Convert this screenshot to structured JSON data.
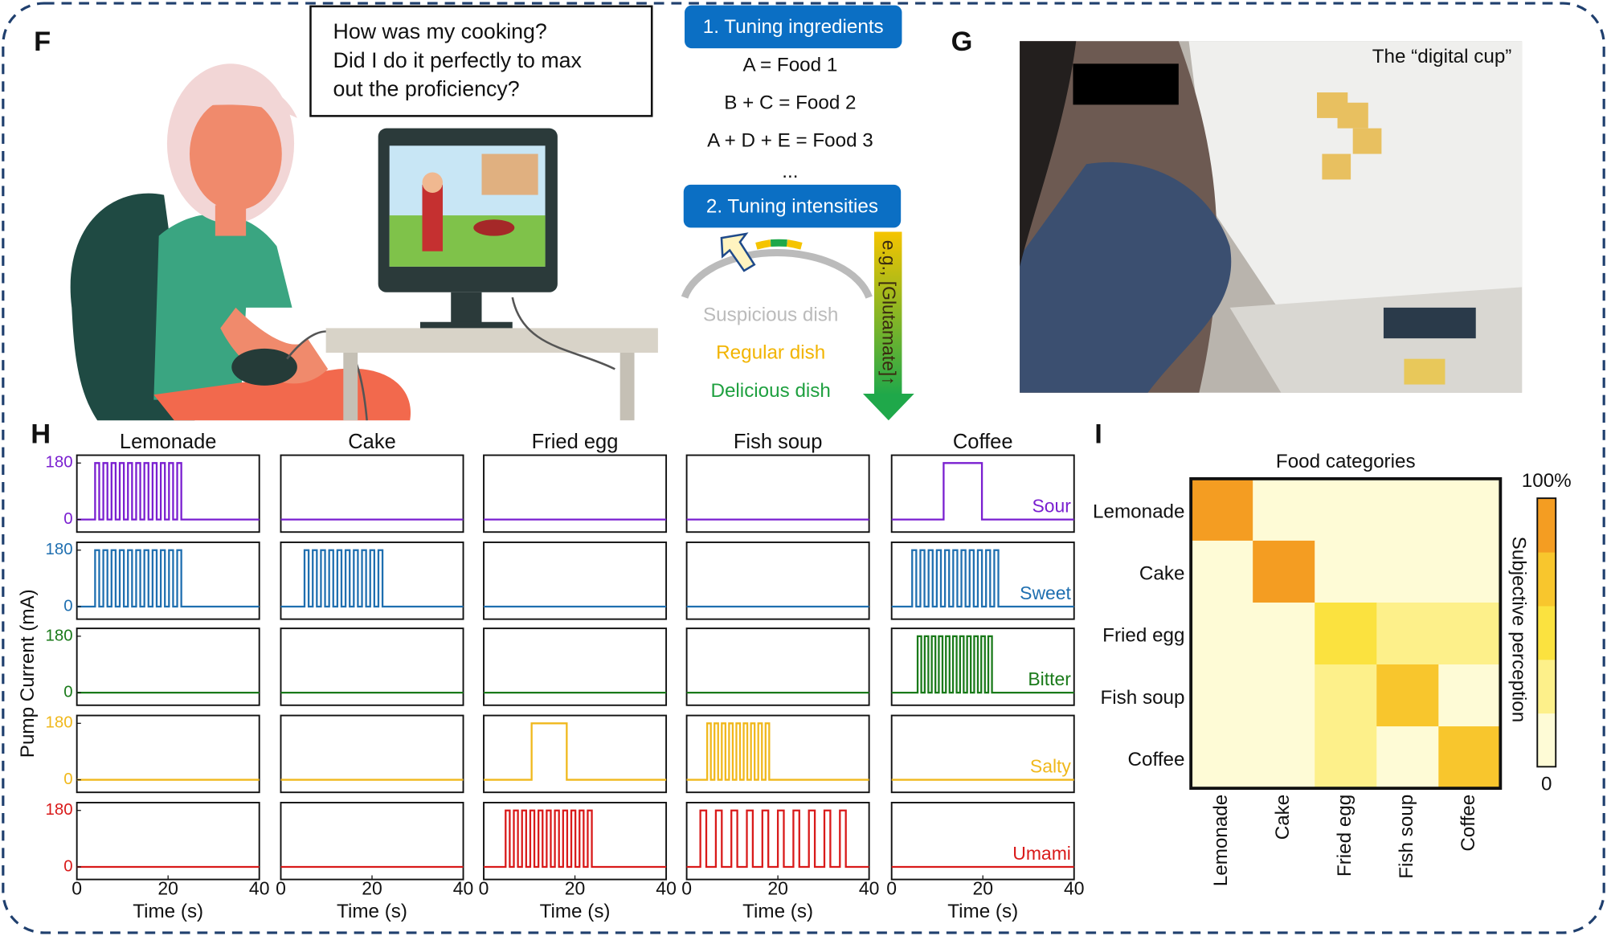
{
  "panels": {
    "F": {
      "label": "F",
      "speech": [
        "How was my cooking?",
        "Did I do it perfectly to max",
        "out the proficiency?"
      ],
      "step1": "1. Tuning ingredients",
      "recipes": [
        "A = Food 1",
        "B + C = Food 2",
        "A + D + E = Food 3",
        "..."
      ],
      "step2": "2. Tuning intensities",
      "dishes": [
        "Suspicious dish",
        "Regular dish",
        "Delicious dish"
      ],
      "arrow_label": "e.g., [Glutamate]↑"
    },
    "G": {
      "label": "G",
      "caption": "The “digital cup”"
    },
    "H": {
      "label": "H"
    },
    "I": {
      "label": "I"
    }
  },
  "chart_data": [
    {
      "type": "pulse",
      "ylabel": "Pump Current (mA)",
      "xlabel": "Time (s)",
      "columns": [
        "Lemonade",
        "Cake",
        "Fried egg",
        "Fish soup",
        "Coffee"
      ],
      "rows": [
        {
          "name": "Sour",
          "color": "#7a1fd0"
        },
        {
          "name": "Sweet",
          "color": "#1f6fb0"
        },
        {
          "name": "Bitter",
          "color": "#1a7a1a"
        },
        {
          "name": "Salty",
          "color": "#f0b81c"
        },
        {
          "name": "Umami",
          "color": "#d91a1a"
        }
      ],
      "xlim": [
        0,
        40
      ],
      "xticks": [
        0,
        20,
        40
      ],
      "ylim": [
        -40,
        205
      ],
      "yticks": [
        0,
        180
      ],
      "trains": [
        [
          [
            {
              "start": 4,
              "period": 1.8,
              "width": 0.9,
              "count": 11,
              "amplitude": 180
            }
          ],
          [],
          [],
          [],
          [
            {
              "start": 11.4,
              "period": 8.4,
              "width": 8.4,
              "count": 1,
              "amplitude": 180
            }
          ]
        ],
        [
          [
            {
              "start": 4,
              "period": 1.8,
              "width": 0.9,
              "count": 11,
              "amplitude": 180
            }
          ],
          [
            {
              "start": 5.2,
              "period": 1.8,
              "width": 0.9,
              "count": 10,
              "amplitude": 180
            }
          ],
          [],
          [],
          [
            {
              "start": 4.5,
              "period": 1.8,
              "width": 0.9,
              "count": 11,
              "amplitude": 180
            }
          ]
        ],
        [
          [],
          [],
          [],
          [],
          [
            {
              "start": 5.7,
              "period": 1.55,
              "width": 0.8,
              "count": 11,
              "amplitude": 180
            }
          ]
        ],
        [
          [],
          [],
          [
            {
              "start": 10.5,
              "period": 7.7,
              "width": 7.7,
              "count": 1,
              "amplitude": 180
            }
          ],
          [
            {
              "start": 4.5,
              "period": 1.6,
              "width": 0.8,
              "count": 9,
              "amplitude": 180
            }
          ],
          []
        ],
        [
          [],
          [],
          [
            {
              "start": 4.8,
              "period": 1.8,
              "width": 0.9,
              "count": 11,
              "amplitude": 180
            }
          ],
          [
            {
              "start": 3,
              "period": 3.4,
              "width": 1.3,
              "count": 10,
              "amplitude": 180
            }
          ],
          []
        ]
      ]
    },
    {
      "type": "heatmap",
      "title": "Food categories",
      "rows": [
        "Lemonade",
        "Cake",
        "Fried egg",
        "Fish soup",
        "Coffee"
      ],
      "columns": [
        "Lemonade",
        "Cake",
        "Fried egg",
        "Fish soup",
        "Coffee"
      ],
      "values": [
        [
          90,
          5,
          5,
          5,
          5
        ],
        [
          5,
          90,
          5,
          5,
          5
        ],
        [
          5,
          5,
          50,
          30,
          30
        ],
        [
          5,
          5,
          30,
          65,
          5
        ],
        [
          5,
          5,
          30,
          15,
          75
        ]
      ],
      "colormap": [
        "#fefbd6",
        "#fdf08a",
        "#fbe23f",
        "#f8c62d",
        "#f49d22"
      ],
      "clim": [
        0,
        100
      ],
      "cticks": [
        0,
        {
          "value": 100,
          "label": "100%"
        }
      ],
      "colorbar_label": "Subjective perception"
    }
  ]
}
